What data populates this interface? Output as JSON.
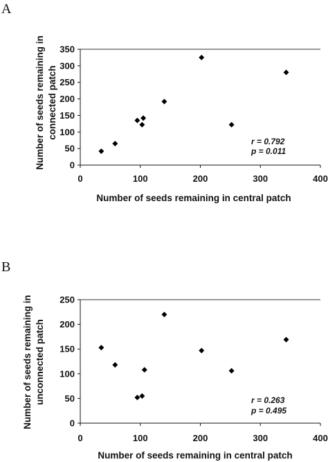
{
  "chart_data": [
    {
      "type": "scatter",
      "panel": "A",
      "xlabel": "Number of seeds remaining in central patch",
      "ylabel": [
        "Number of seeds remaining in",
        "connected patch"
      ],
      "xlim": [
        0,
        400
      ],
      "ylim": [
        0,
        350
      ],
      "xticks": [
        0,
        100,
        200,
        300,
        400
      ],
      "yticks": [
        0,
        50,
        100,
        150,
        200,
        250,
        300,
        350
      ],
      "grid": "top line at y max",
      "x": [
        35,
        58,
        95,
        103,
        105,
        140,
        202,
        252,
        343
      ],
      "y": [
        42,
        65,
        135,
        122,
        142,
        192,
        325,
        122,
        280
      ],
      "annotations": [
        "r = 0.792",
        "p = 0.011"
      ]
    },
    {
      "type": "scatter",
      "panel": "B",
      "xlabel": "Number of seeds remaining in central patch",
      "ylabel": [
        "Number of seeds remaining in",
        "unconnected patch"
      ],
      "xlim": [
        0,
        400
      ],
      "ylim": [
        0,
        250
      ],
      "xticks": [
        0,
        100,
        200,
        300,
        400
      ],
      "yticks": [
        0,
        50,
        100,
        150,
        200,
        250
      ],
      "grid": "top line at y max",
      "x": [
        35,
        58,
        95,
        103,
        107,
        140,
        202,
        252,
        343
      ],
      "y": [
        153,
        118,
        52,
        55,
        108,
        220,
        147,
        106,
        169
      ],
      "annotations": [
        "r = 0.263",
        "p = 0.495"
      ]
    }
  ]
}
